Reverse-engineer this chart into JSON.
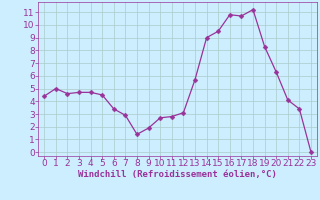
{
  "x": [
    0,
    1,
    2,
    3,
    4,
    5,
    6,
    7,
    8,
    9,
    10,
    11,
    12,
    13,
    14,
    15,
    16,
    17,
    18,
    19,
    20,
    21,
    22,
    23
  ],
  "y": [
    4.4,
    5.0,
    4.6,
    4.7,
    4.7,
    4.5,
    3.4,
    2.9,
    1.4,
    1.9,
    2.7,
    2.8,
    3.1,
    5.7,
    9.0,
    9.5,
    10.8,
    10.7,
    11.2,
    8.3,
    6.3,
    4.1,
    3.4,
    0.0
  ],
  "line_color": "#993399",
  "marker_color": "#993399",
  "bg_color": "#cceeff",
  "grid_color": "#aacccc",
  "xlabel": "Windchill (Refroidissement éolien,°C)",
  "xlim": [
    -0.5,
    23.5
  ],
  "ylim": [
    -0.3,
    11.8
  ],
  "yticks": [
    0,
    1,
    2,
    3,
    4,
    5,
    6,
    7,
    8,
    9,
    10,
    11
  ],
  "xticks": [
    0,
    1,
    2,
    3,
    4,
    5,
    6,
    7,
    8,
    9,
    10,
    11,
    12,
    13,
    14,
    15,
    16,
    17,
    18,
    19,
    20,
    21,
    22,
    23
  ],
  "font_size": 6.5,
  "marker_size": 2.5,
  "line_width": 0.9
}
